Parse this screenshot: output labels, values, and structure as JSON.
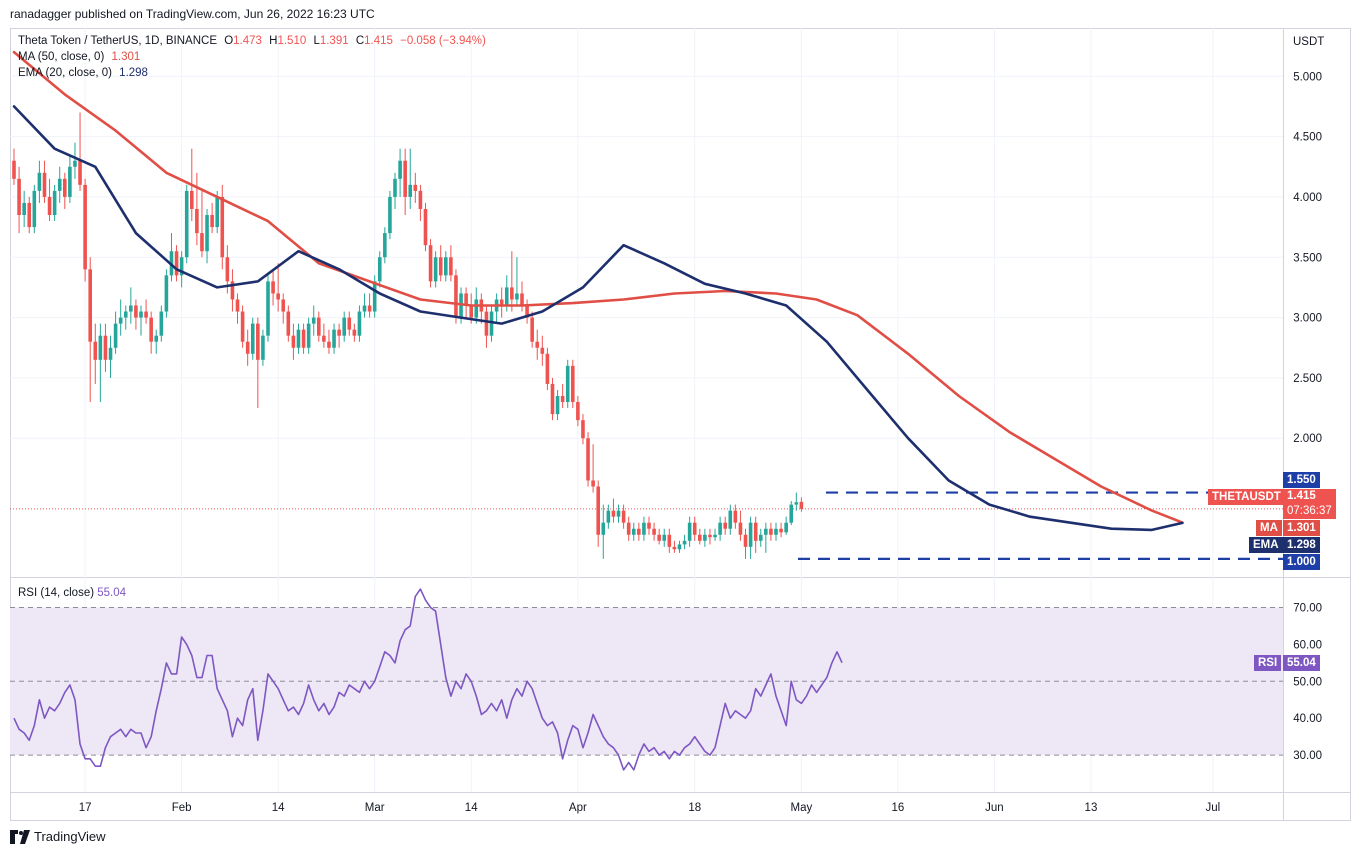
{
  "attribution": "ranadagger published on TradingView.com, Jun 26, 2022 16:23 UTC",
  "footer_brand": "TradingView",
  "legend": {
    "symbol": "Theta Token / TetherUS, 1D, BINANCE",
    "open_label": "O",
    "open": "1.473",
    "high_label": "H",
    "high": "1.510",
    "low_label": "L",
    "low": "1.391",
    "close_label": "C",
    "close": "1.415",
    "change": "−0.058 (−3.94%)",
    "ma_label": "MA (50, close, 0)",
    "ma_value": "1.301",
    "ema_label": "EMA (20, close, 0)",
    "ema_value": "1.298",
    "rsi_label": "RSI (14, close)",
    "rsi_value": "55.04"
  },
  "tags": {
    "symbol_tag": "THETAUSDT",
    "price": "1.415",
    "countdown": "07:36:37",
    "ma": "MA",
    "ma_value": "1.301",
    "ema": "EMA",
    "ema_value": "1.298",
    "rsi": "RSI",
    "rsi_value": "55.04",
    "resistance": "1.550",
    "support": "1.000"
  },
  "colors": {
    "up": "#26a69a",
    "down": "#ef5350",
    "ma": "#e04e45",
    "ema": "#1e2f6e",
    "rsi": "#7e57c2",
    "rsi_band": "#ede7f6",
    "levels": "#1e3fa8",
    "grid": "#f0f3fa"
  },
  "chart_data": [
    {
      "type": "candlestick",
      "title": "Theta Token / TetherUS, 1D, BINANCE",
      "y_unit": "USDT",
      "x_ticks": [
        "17",
        "Feb",
        "14",
        "Mar",
        "14",
        "Apr",
        "18",
        "May",
        "16",
        "Jun",
        "13",
        "Jul"
      ],
      "y_ticks": [
        "5.000",
        "4.500",
        "4.000",
        "3.500",
        "3.000",
        "2.500",
        "2.000"
      ],
      "ylim": [
        0.85,
        5.4
      ],
      "horizontal_levels": [
        1.55,
        1.0
      ],
      "last_price": 1.415,
      "ohlc": [
        [
          4.3,
          4.4,
          4.1,
          4.15
        ],
        [
          4.15,
          4.25,
          3.7,
          3.85
        ],
        [
          3.85,
          4.05,
          3.75,
          3.95
        ],
        [
          3.95,
          4.0,
          3.7,
          3.75
        ],
        [
          3.75,
          4.1,
          3.7,
          4.05
        ],
        [
          4.05,
          4.3,
          3.95,
          4.2
        ],
        [
          4.2,
          4.3,
          3.95,
          4.0
        ],
        [
          4.0,
          4.15,
          3.8,
          3.85
        ],
        [
          3.85,
          4.1,
          3.8,
          4.05
        ],
        [
          4.05,
          4.25,
          3.95,
          4.15
        ],
        [
          4.15,
          4.2,
          3.9,
          4.0
        ],
        [
          4.0,
          4.35,
          3.95,
          4.25
        ],
        [
          4.25,
          4.45,
          4.15,
          4.3
        ],
        [
          4.3,
          4.7,
          4.05,
          4.1
        ],
        [
          4.1,
          4.15,
          3.3,
          3.4
        ],
        [
          3.4,
          3.5,
          2.3,
          2.8
        ],
        [
          2.8,
          2.95,
          2.45,
          2.65
        ],
        [
          2.65,
          2.95,
          2.3,
          2.85
        ],
        [
          2.85,
          2.95,
          2.55,
          2.65
        ],
        [
          2.65,
          2.85,
          2.5,
          2.75
        ],
        [
          2.75,
          3.05,
          2.7,
          2.95
        ],
        [
          2.95,
          3.15,
          2.85,
          3.0
        ],
        [
          3.0,
          3.1,
          2.9,
          3.05
        ],
        [
          3.05,
          3.25,
          2.95,
          3.1
        ],
        [
          3.1,
          3.15,
          2.9,
          3.0
        ],
        [
          3.0,
          3.1,
          2.85,
          3.05
        ],
        [
          3.05,
          3.15,
          2.95,
          3.0
        ],
        [
          3.0,
          3.05,
          2.7,
          2.8
        ],
        [
          2.8,
          2.9,
          2.7,
          2.85
        ],
        [
          2.85,
          3.1,
          2.8,
          3.05
        ],
        [
          3.05,
          3.4,
          3.0,
          3.35
        ],
        [
          3.35,
          3.7,
          3.3,
          3.55
        ],
        [
          3.55,
          3.6,
          3.3,
          3.35
        ],
        [
          3.35,
          3.55,
          3.25,
          3.5
        ],
        [
          3.5,
          4.1,
          3.45,
          4.05
        ],
        [
          4.05,
          4.4,
          3.8,
          3.9
        ],
        [
          3.9,
          4.2,
          3.6,
          3.7
        ],
        [
          3.7,
          4.05,
          3.5,
          3.55
        ],
        [
          3.55,
          3.9,
          3.45,
          3.85
        ],
        [
          3.85,
          3.95,
          3.7,
          3.75
        ],
        [
          3.75,
          4.05,
          3.7,
          4.0
        ],
        [
          4.0,
          4.1,
          3.4,
          3.5
        ],
        [
          3.5,
          3.6,
          3.2,
          3.3
        ],
        [
          3.3,
          3.4,
          3.05,
          3.15
        ],
        [
          3.15,
          3.2,
          2.95,
          3.05
        ],
        [
          3.05,
          3.1,
          2.75,
          2.8
        ],
        [
          2.8,
          2.9,
          2.6,
          2.7
        ],
        [
          2.7,
          3.0,
          2.65,
          2.95
        ],
        [
          2.95,
          3.0,
          2.25,
          2.65
        ],
        [
          2.65,
          2.9,
          2.6,
          2.85
        ],
        [
          2.85,
          3.35,
          2.8,
          3.3
        ],
        [
          3.3,
          3.4,
          3.1,
          3.2
        ],
        [
          3.2,
          3.45,
          3.05,
          3.15
        ],
        [
          3.15,
          3.2,
          2.95,
          3.05
        ],
        [
          3.05,
          3.1,
          2.8,
          2.85
        ],
        [
          2.85,
          2.95,
          2.65,
          2.75
        ],
        [
          2.75,
          2.95,
          2.7,
          2.9
        ],
        [
          2.9,
          2.95,
          2.7,
          2.75
        ],
        [
          2.75,
          3.0,
          2.7,
          2.95
        ],
        [
          2.95,
          3.1,
          2.85,
          3.0
        ],
        [
          3.0,
          3.05,
          2.8,
          2.85
        ],
        [
          2.85,
          2.95,
          2.75,
          2.8
        ],
        [
          2.8,
          2.9,
          2.7,
          2.75
        ],
        [
          2.75,
          2.95,
          2.7,
          2.9
        ],
        [
          2.9,
          2.95,
          2.75,
          2.85
        ],
        [
          2.85,
          3.05,
          2.8,
          3.0
        ],
        [
          3.0,
          3.05,
          2.85,
          2.9
        ],
        [
          2.9,
          2.95,
          2.8,
          2.85
        ],
        [
          2.85,
          3.1,
          2.8,
          3.05
        ],
        [
          3.05,
          3.2,
          3.0,
          3.1
        ],
        [
          3.1,
          3.2,
          3.0,
          3.05
        ],
        [
          3.05,
          3.35,
          3.0,
          3.3
        ],
        [
          3.3,
          3.55,
          3.25,
          3.5
        ],
        [
          3.5,
          3.75,
          3.45,
          3.7
        ],
        [
          3.7,
          4.05,
          3.65,
          4.0
        ],
        [
          4.0,
          4.2,
          3.9,
          4.15
        ],
        [
          4.15,
          4.4,
          4.0,
          4.3
        ],
        [
          4.3,
          4.4,
          3.85,
          4.0
        ],
        [
          4.0,
          4.4,
          3.9,
          4.1
        ],
        [
          4.1,
          4.2,
          3.95,
          4.05
        ],
        [
          4.05,
          4.1,
          3.8,
          3.9
        ],
        [
          3.9,
          3.95,
          3.55,
          3.6
        ],
        [
          3.6,
          3.65,
          3.25,
          3.3
        ],
        [
          3.3,
          3.55,
          3.25,
          3.5
        ],
        [
          3.5,
          3.6,
          3.3,
          3.35
        ],
        [
          3.35,
          3.55,
          3.3,
          3.5
        ],
        [
          3.5,
          3.6,
          3.3,
          3.35
        ],
        [
          3.35,
          3.4,
          2.95,
          3.0
        ],
        [
          3.0,
          3.25,
          2.95,
          3.2
        ],
        [
          3.2,
          3.25,
          3.0,
          3.1
        ],
        [
          3.1,
          3.2,
          2.95,
          3.0
        ],
        [
          3.0,
          3.25,
          2.95,
          3.15
        ],
        [
          3.15,
          3.2,
          2.95,
          3.05
        ],
        [
          3.05,
          3.1,
          2.75,
          2.85
        ],
        [
          2.85,
          3.1,
          2.8,
          3.05
        ],
        [
          3.05,
          3.2,
          2.95,
          3.15
        ],
        [
          3.15,
          3.25,
          3.0,
          3.1
        ],
        [
          3.1,
          3.35,
          3.05,
          3.25
        ],
        [
          3.25,
          3.55,
          3.05,
          3.15
        ],
        [
          3.15,
          3.5,
          3.1,
          3.2
        ],
        [
          3.2,
          3.3,
          3.05,
          3.1
        ],
        [
          3.1,
          3.15,
          2.95,
          3.0
        ],
        [
          3.0,
          3.05,
          2.75,
          2.8
        ],
        [
          2.8,
          2.9,
          2.65,
          2.75
        ],
        [
          2.75,
          2.85,
          2.6,
          2.7
        ],
        [
          2.7,
          2.75,
          2.4,
          2.45
        ],
        [
          2.45,
          2.5,
          2.15,
          2.2
        ],
        [
          2.2,
          2.4,
          2.15,
          2.35
        ],
        [
          2.35,
          2.45,
          2.25,
          2.3
        ],
        [
          2.3,
          2.65,
          2.25,
          2.6
        ],
        [
          2.6,
          2.65,
          2.25,
          2.3
        ],
        [
          2.3,
          2.35,
          2.1,
          2.15
        ],
        [
          2.15,
          2.2,
          1.95,
          2.0
        ],
        [
          2.0,
          2.05,
          1.6,
          1.65
        ],
        [
          1.65,
          1.95,
          1.55,
          1.6
        ],
        [
          1.6,
          1.65,
          1.1,
          1.2
        ],
        [
          1.2,
          1.45,
          1.0,
          1.3
        ],
        [
          1.3,
          1.45,
          1.25,
          1.4
        ],
        [
          1.4,
          1.5,
          1.3,
          1.35
        ],
        [
          1.35,
          1.45,
          1.3,
          1.4
        ],
        [
          1.4,
          1.45,
          1.25,
          1.3
        ],
        [
          1.3,
          1.35,
          1.15,
          1.2
        ],
        [
          1.2,
          1.3,
          1.15,
          1.25
        ],
        [
          1.25,
          1.3,
          1.15,
          1.2
        ],
        [
          1.2,
          1.35,
          1.15,
          1.3
        ],
        [
          1.3,
          1.35,
          1.2,
          1.25
        ],
        [
          1.25,
          1.3,
          1.15,
          1.2
        ],
        [
          1.2,
          1.25,
          1.12,
          1.15
        ],
        [
          1.15,
          1.25,
          1.1,
          1.2
        ],
        [
          1.2,
          1.25,
          1.05,
          1.1
        ],
        [
          1.1,
          1.15,
          1.05,
          1.08
        ],
        [
          1.08,
          1.15,
          1.05,
          1.12
        ],
        [
          1.12,
          1.2,
          1.08,
          1.15
        ],
        [
          1.15,
          1.35,
          1.1,
          1.3
        ],
        [
          1.3,
          1.35,
          1.15,
          1.2
        ],
        [
          1.2,
          1.25,
          1.12,
          1.15
        ],
        [
          1.15,
          1.25,
          1.1,
          1.2
        ],
        [
          1.2,
          1.25,
          1.12,
          1.18
        ],
        [
          1.18,
          1.25,
          1.15,
          1.2
        ],
        [
          1.2,
          1.35,
          1.15,
          1.3
        ],
        [
          1.3,
          1.35,
          1.2,
          1.25
        ],
        [
          1.25,
          1.45,
          1.2,
          1.4
        ],
        [
          1.4,
          1.45,
          1.25,
          1.3
        ],
        [
          1.3,
          1.4,
          1.15,
          1.2
        ],
        [
          1.2,
          1.25,
          1.0,
          1.1
        ],
        [
          1.1,
          1.35,
          1.0,
          1.3
        ],
        [
          1.3,
          1.35,
          1.05,
          1.15
        ],
        [
          1.15,
          1.25,
          1.1,
          1.2
        ],
        [
          1.2,
          1.3,
          1.05,
          1.25
        ],
        [
          1.25,
          1.3,
          1.15,
          1.2
        ],
        [
          1.2,
          1.3,
          1.15,
          1.25
        ],
        [
          1.25,
          1.3,
          1.18,
          1.22
        ],
        [
          1.22,
          1.35,
          1.2,
          1.3
        ],
        [
          1.3,
          1.48,
          1.28,
          1.45
        ],
        [
          1.45,
          1.55,
          1.4,
          1.47
        ],
        [
          1.473,
          1.51,
          1.391,
          1.415
        ]
      ],
      "ma50": [
        [
          0,
          5.2
        ],
        [
          10,
          4.85
        ],
        [
          20,
          4.55
        ],
        [
          30,
          4.2
        ],
        [
          40,
          4.0
        ],
        [
          50,
          3.8
        ],
        [
          60,
          3.45
        ],
        [
          70,
          3.3
        ],
        [
          80,
          3.15
        ],
        [
          90,
          3.1
        ],
        [
          100,
          3.1
        ],
        [
          110,
          3.12
        ],
        [
          120,
          3.15
        ],
        [
          130,
          3.2
        ],
        [
          140,
          3.22
        ],
        [
          150,
          3.2
        ],
        [
          158,
          3.15
        ],
        [
          166,
          3.02
        ],
        [
          176,
          2.7
        ],
        [
          186,
          2.35
        ],
        [
          196,
          2.05
        ],
        [
          206,
          1.8
        ],
        [
          214,
          1.6
        ],
        [
          224,
          1.4
        ],
        [
          230,
          1.301
        ]
      ],
      "ema20": [
        [
          0,
          4.75
        ],
        [
          8,
          4.4
        ],
        [
          16,
          4.25
        ],
        [
          24,
          3.7
        ],
        [
          32,
          3.4
        ],
        [
          40,
          3.25
        ],
        [
          48,
          3.3
        ],
        [
          56,
          3.55
        ],
        [
          64,
          3.4
        ],
        [
          72,
          3.2
        ],
        [
          80,
          3.05
        ],
        [
          88,
          3.0
        ],
        [
          96,
          2.95
        ],
        [
          104,
          3.05
        ],
        [
          112,
          3.25
        ],
        [
          120,
          3.6
        ],
        [
          128,
          3.45
        ],
        [
          136,
          3.28
        ],
        [
          144,
          3.2
        ],
        [
          152,
          3.1
        ],
        [
          160,
          2.8
        ],
        [
          168,
          2.4
        ],
        [
          176,
          2.0
        ],
        [
          184,
          1.65
        ],
        [
          192,
          1.45
        ],
        [
          200,
          1.35
        ],
        [
          208,
          1.3
        ],
        [
          216,
          1.25
        ],
        [
          224,
          1.24
        ],
        [
          230,
          1.298
        ]
      ]
    },
    {
      "type": "line",
      "title": "RSI (14, close)",
      "y_ticks": [
        "70.00",
        "60.00",
        "50.00",
        "40.00",
        "30.00"
      ],
      "ylim": [
        20,
        78
      ],
      "band": [
        30,
        70
      ],
      "midline": 50,
      "values": [
        40,
        37,
        36,
        34,
        38,
        45,
        40,
        43,
        42,
        44,
        47,
        49,
        45,
        33,
        29,
        29,
        27,
        27,
        32,
        35,
        36,
        37,
        35,
        37,
        36,
        36,
        32,
        35,
        42,
        48,
        55,
        52,
        52,
        62,
        60,
        57,
        51,
        51,
        57,
        57,
        48,
        45,
        42,
        35,
        40,
        38,
        45,
        48,
        34,
        42,
        52,
        50,
        48,
        45,
        42,
        43,
        41,
        44,
        49,
        45,
        42,
        44,
        41,
        43,
        47,
        46,
        49,
        48,
        47,
        50,
        48,
        50,
        54,
        58,
        57,
        55,
        61,
        64,
        65,
        73,
        75,
        72,
        70,
        69,
        60,
        51,
        46,
        50,
        48,
        52,
        50,
        46,
        41,
        42,
        44,
        42,
        45,
        40,
        45,
        48,
        46,
        50,
        48,
        44,
        40,
        38,
        39,
        36,
        29,
        34,
        38,
        37,
        32,
        36,
        41,
        38,
        35,
        33,
        32,
        30,
        26,
        28,
        26,
        30,
        33,
        31,
        32,
        30,
        31,
        29,
        31,
        30,
        32,
        33,
        35,
        33,
        31,
        30,
        32,
        38,
        44,
        40,
        42,
        41,
        40,
        42,
        48,
        46,
        49,
        52,
        46,
        42,
        38,
        50,
        45,
        44,
        46,
        49,
        47,
        49,
        51,
        55,
        58,
        55.04
      ]
    }
  ]
}
